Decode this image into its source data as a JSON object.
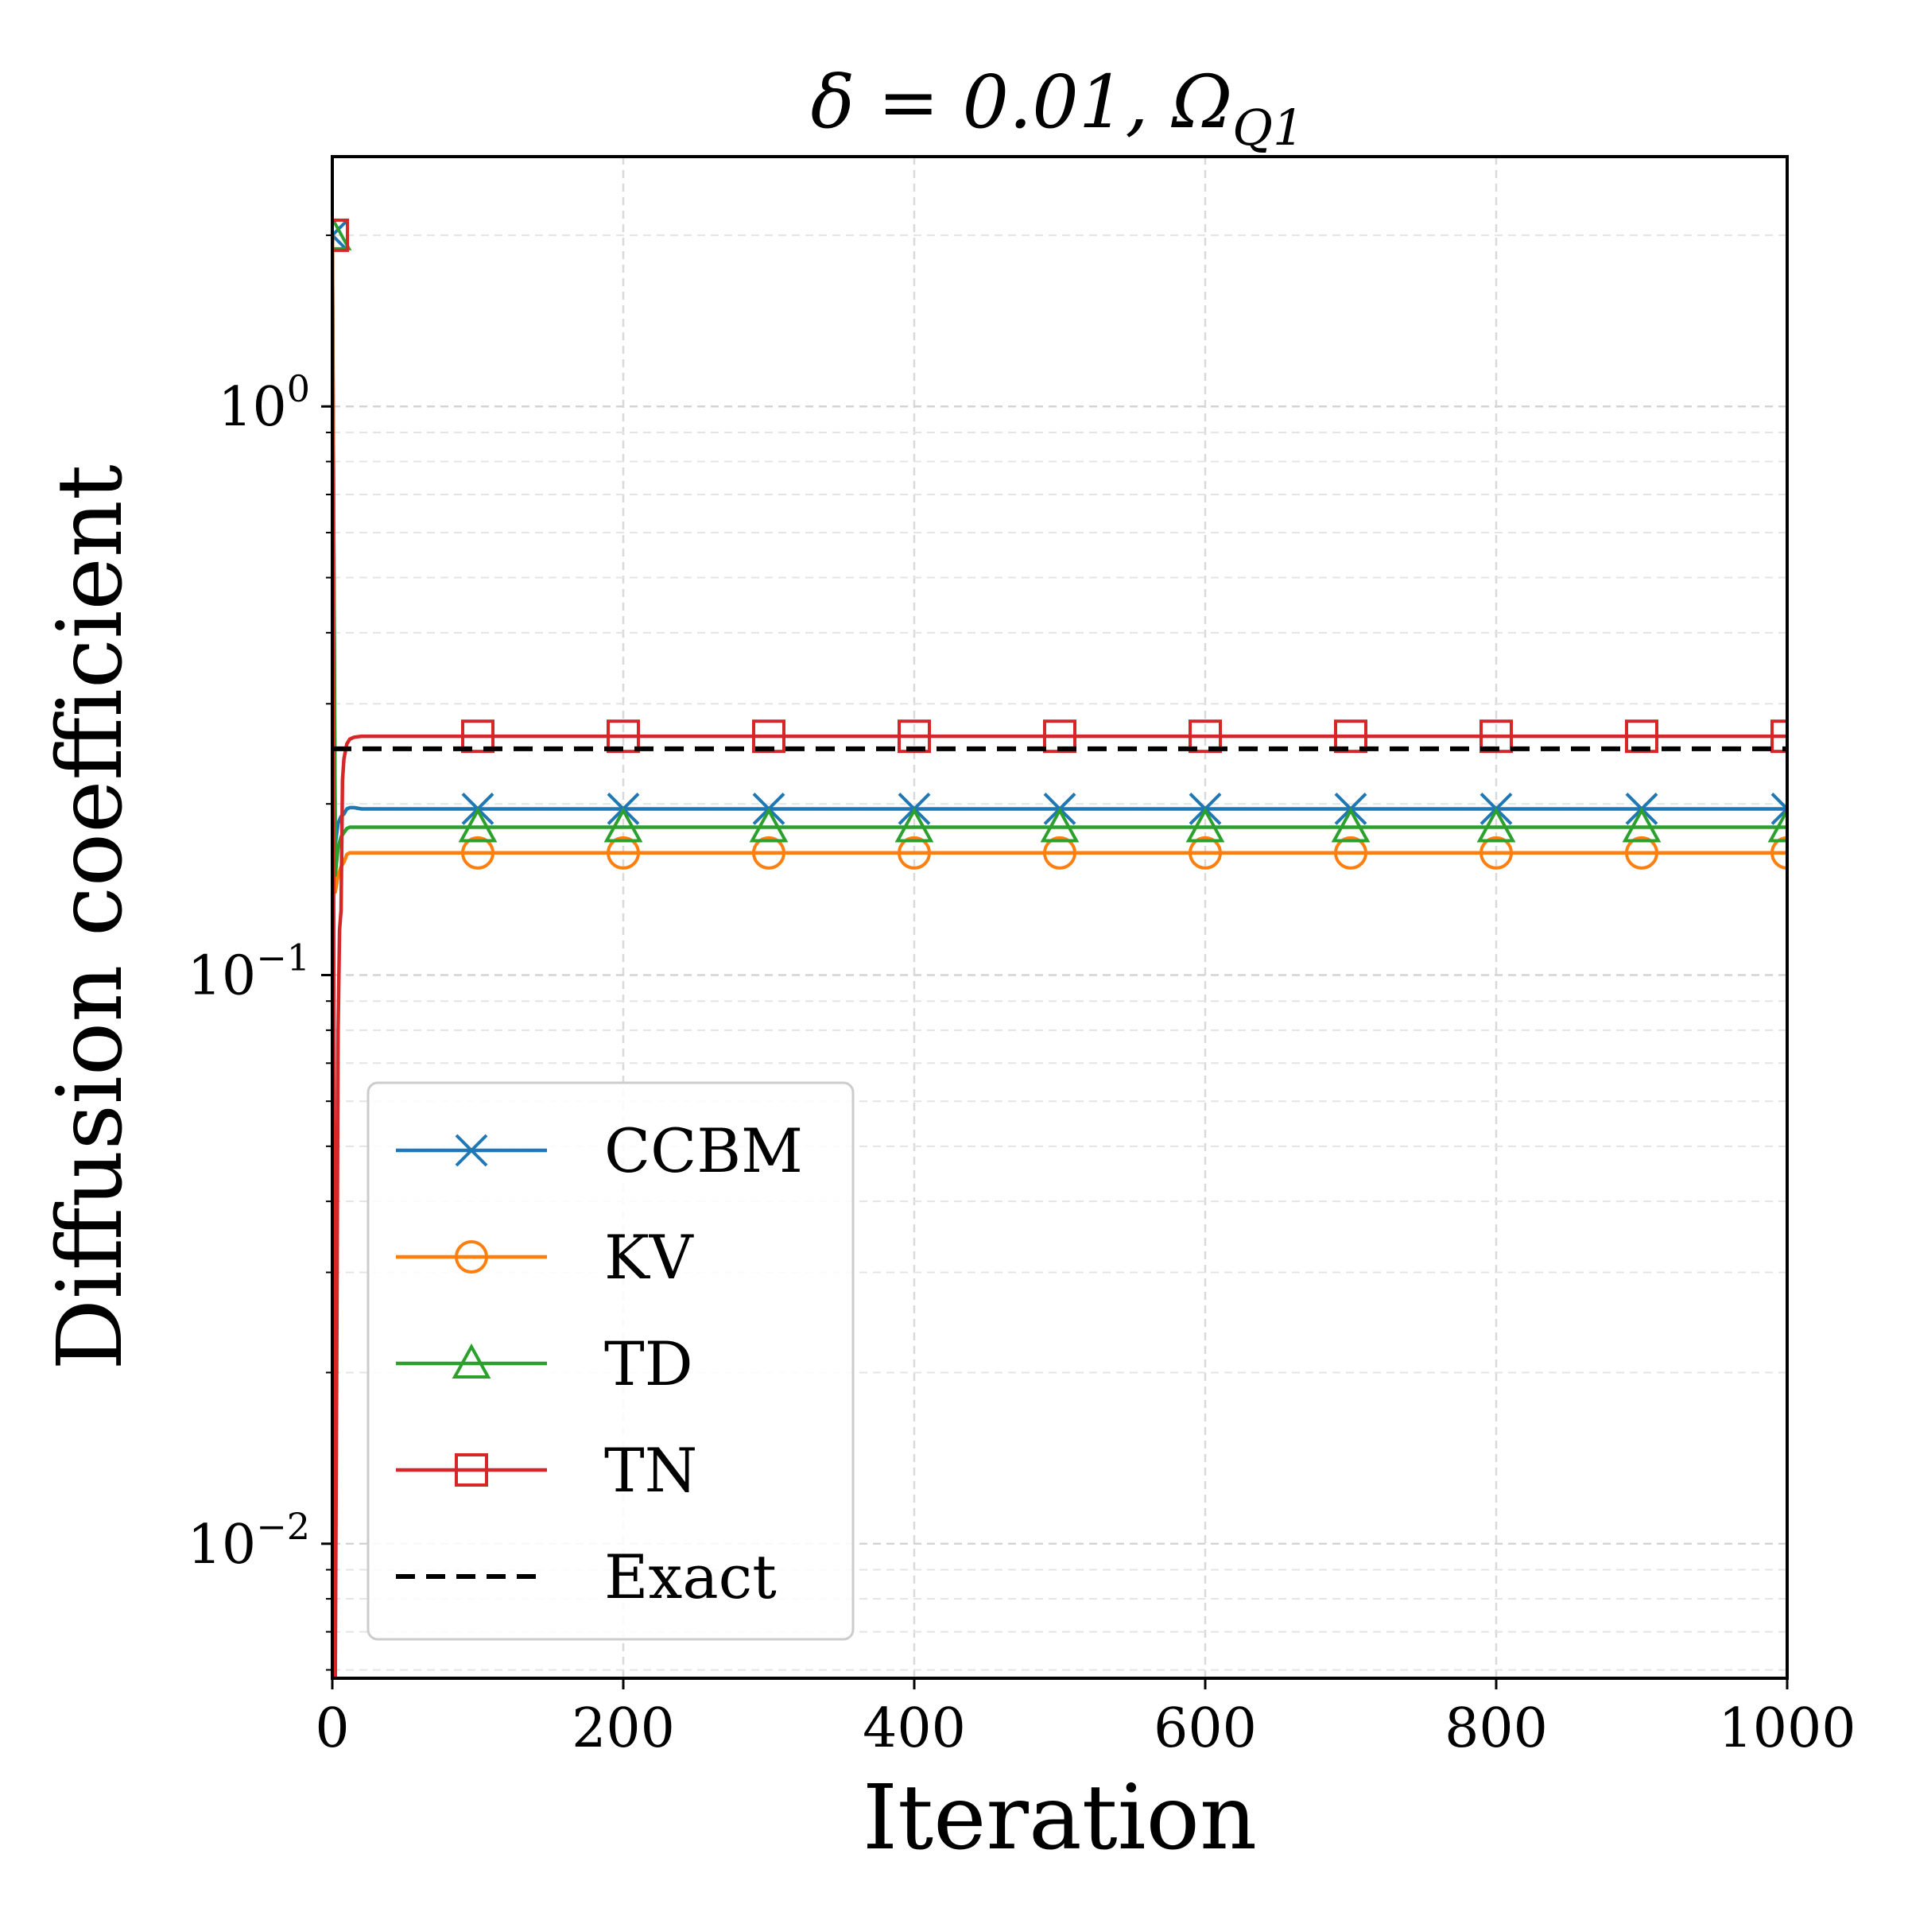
{
  "chart_data": {
    "type": "line",
    "title": "δ = 0.01,  Ω",
    "title_subscript": "Q1",
    "xlabel": "Iteration",
    "ylabel": "Diffusion coefficient",
    "xlim": [
      0,
      1000
    ],
    "ylim": [
      0.0058,
      2.75
    ],
    "yscale": "log",
    "grid": true,
    "legend_position": "lower-left",
    "x_ticks": [
      0,
      200,
      400,
      600,
      800,
      1000
    ],
    "x_tick_labels": [
      "0",
      "200",
      "400",
      "600",
      "800",
      "1000"
    ],
    "y_major_ticks": [
      {
        "value": 0.01,
        "base": "10",
        "exp": "−2"
      },
      {
        "value": 0.1,
        "base": "10",
        "exp": "−1"
      },
      {
        "value": 1,
        "base": "10",
        "exp": "0"
      }
    ],
    "series": [
      {
        "name": "CCBM",
        "color": "#1f77b4",
        "marker": "x",
        "x": [
          0,
          2,
          4,
          6,
          8,
          10,
          12,
          15,
          20,
          50,
          100,
          1000
        ],
        "y": [
          2.0,
          0.17,
          0.185,
          0.19,
          0.192,
          0.196,
          0.197,
          0.197,
          0.196,
          0.196,
          0.196,
          0.196
        ],
        "marker_x": [
          0,
          100,
          200,
          300,
          400,
          500,
          600,
          700,
          800,
          900,
          1000
        ],
        "marker_y": [
          2.0,
          0.196,
          0.196,
          0.196,
          0.196,
          0.196,
          0.196,
          0.196,
          0.196,
          0.196,
          0.196
        ]
      },
      {
        "name": "KV",
        "color": "#ff7f0e",
        "marker": "o",
        "x": [
          0,
          2,
          4,
          6,
          8,
          10,
          12,
          15,
          20,
          50,
          100,
          1000
        ],
        "y": [
          2.0,
          0.14,
          0.15,
          0.155,
          0.158,
          0.163,
          0.164,
          0.164,
          0.164,
          0.164,
          0.164,
          0.164
        ],
        "marker_x": [
          100,
          200,
          300,
          400,
          500,
          600,
          700,
          800,
          900,
          1000
        ],
        "marker_y": [
          0.164,
          0.164,
          0.164,
          0.164,
          0.164,
          0.164,
          0.164,
          0.164,
          0.164,
          0.164
        ]
      },
      {
        "name": "TD",
        "color": "#2ca02c",
        "marker": "^",
        "x": [
          0,
          2,
          4,
          6,
          8,
          10,
          12,
          15,
          20,
          50,
          100,
          1000
        ],
        "y": [
          2.0,
          0.15,
          0.168,
          0.175,
          0.178,
          0.181,
          0.182,
          0.182,
          0.182,
          0.182,
          0.182,
          0.182
        ],
        "marker_x": [
          0,
          100,
          200,
          300,
          400,
          500,
          600,
          700,
          800,
          900,
          1000
        ],
        "marker_y": [
          2.0,
          0.182,
          0.182,
          0.182,
          0.182,
          0.182,
          0.182,
          0.182,
          0.182,
          0.182,
          0.182
        ]
      },
      {
        "name": "TN",
        "color": "#d62728",
        "marker": "s",
        "x": [
          0,
          2,
          3,
          4,
          5,
          6,
          7,
          8,
          10,
          12,
          15,
          20,
          50,
          100,
          1000
        ],
        "y": [
          2.0,
          0.0058,
          0.02,
          0.08,
          0.12,
          0.13,
          0.22,
          0.24,
          0.255,
          0.26,
          0.262,
          0.263,
          0.263,
          0.263,
          0.263
        ],
        "marker_x": [
          0,
          100,
          200,
          300,
          400,
          500,
          600,
          700,
          800,
          900,
          1000
        ],
        "marker_y": [
          2.0,
          0.263,
          0.263,
          0.263,
          0.263,
          0.263,
          0.263,
          0.263,
          0.263,
          0.263,
          0.263
        ]
      },
      {
        "name": "Exact",
        "color": "#000000",
        "marker": "none",
        "style": "dashed",
        "x": [
          0,
          1000
        ],
        "y": [
          0.25,
          0.25
        ]
      }
    ]
  }
}
